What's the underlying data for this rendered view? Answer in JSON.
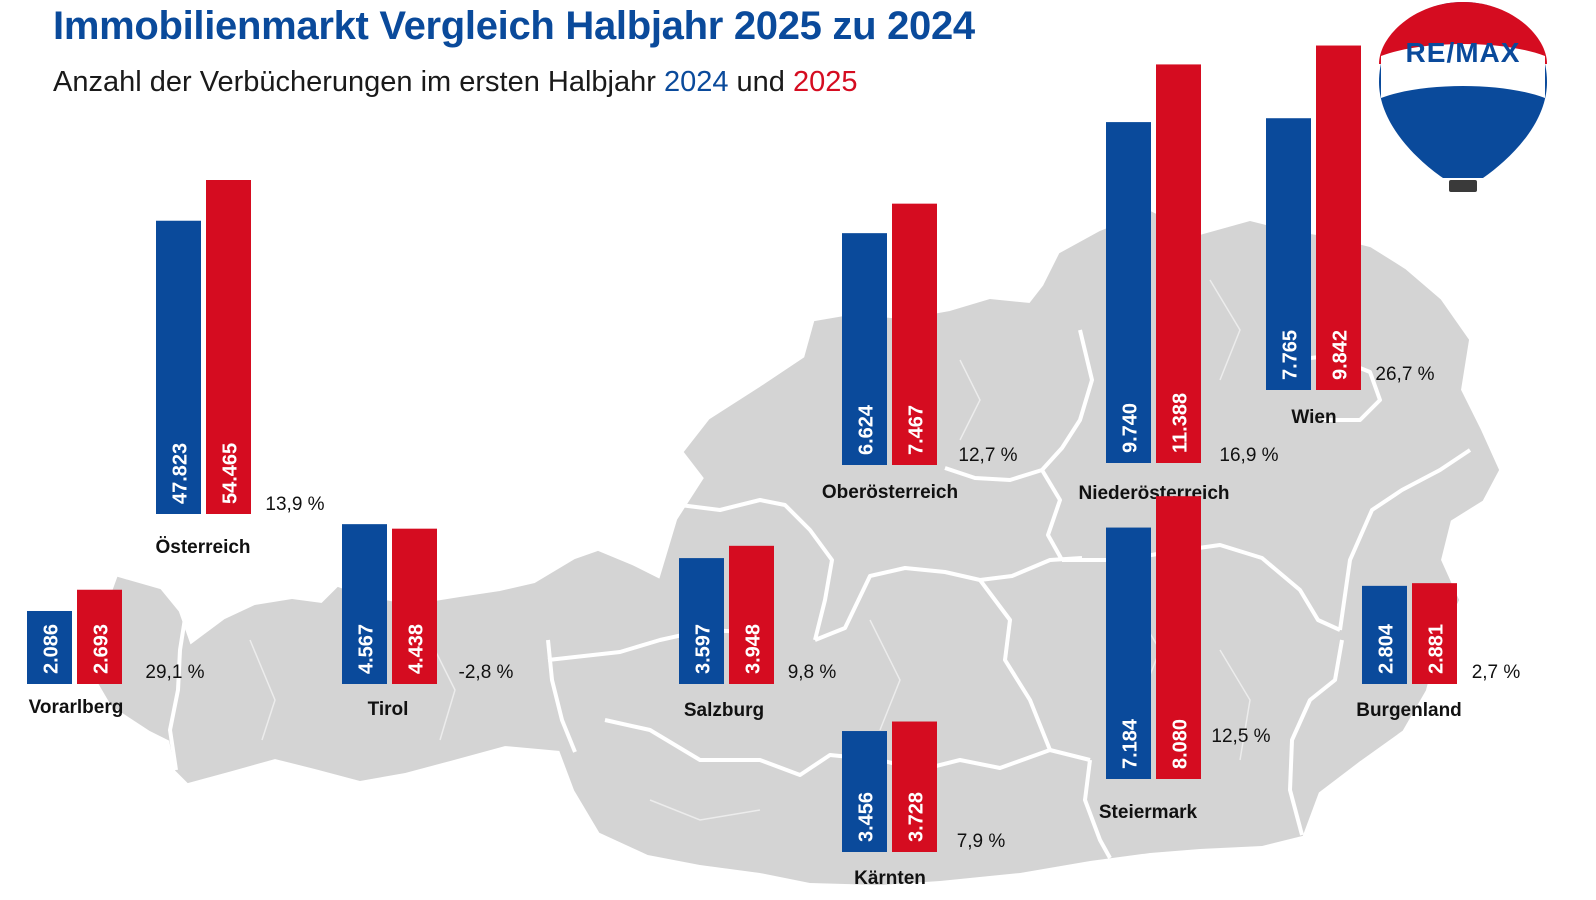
{
  "title": "Immobilienmarkt Vergleich Halbjahr 2025 zu 2024",
  "subtitle": {
    "prefix": "Anzahl der Verbücherungen im ersten Halbjahr ",
    "year_a": "2024",
    "middle": " und ",
    "year_b": "2025"
  },
  "logo": {
    "text": "RE/MAX",
    "icon": "hot-air-balloon-icon"
  },
  "colors": {
    "y2024": "#0a4a9b",
    "y2025": "#d50c20",
    "map": "#d4d4d4",
    "map_border": "#ffffff"
  },
  "chart_data": {
    "type": "bar",
    "title": "Immobilienmarkt Vergleich Halbjahr 2025 zu 2024",
    "subtitle": "Anzahl der Verbücherungen im ersten Halbjahr 2024 und 2025",
    "series_names": [
      "2024",
      "2025"
    ],
    "regions": [
      {
        "name": "Österreich",
        "v2024": 47823,
        "v2025": 54465,
        "label2024": "47.823",
        "label2025": "54.465",
        "change": "13,9 %"
      },
      {
        "name": "Vorarlberg",
        "v2024": 2086,
        "v2025": 2693,
        "label2024": "2.086",
        "label2025": "2.693",
        "change": "29,1 %"
      },
      {
        "name": "Tirol",
        "v2024": 4567,
        "v2025": 4438,
        "label2024": "4.567",
        "label2025": "4.438",
        "change": "-2,8 %"
      },
      {
        "name": "Salzburg",
        "v2024": 3597,
        "v2025": 3948,
        "label2024": "3.597",
        "label2025": "3.948",
        "change": "9,8 %"
      },
      {
        "name": "Oberösterreich",
        "v2024": 6624,
        "v2025": 7467,
        "label2024": "6.624",
        "label2025": "7.467",
        "change": "12,7 %"
      },
      {
        "name": "Niederösterreich",
        "v2024": 9740,
        "v2025": 11388,
        "label2024": "9.740",
        "label2025": "11.388",
        "change": "16,9 %"
      },
      {
        "name": "Wien",
        "v2024": 7765,
        "v2025": 9842,
        "label2024": "7.765",
        "label2025": "9.842",
        "change": "26,7 %"
      },
      {
        "name": "Kärnten",
        "v2024": 3456,
        "v2025": 3728,
        "label2024": "3.456",
        "label2025": "3.728",
        "change": "7,9 %"
      },
      {
        "name": "Steiermark",
        "v2024": 7184,
        "v2025": 8080,
        "label2024": "7.184",
        "label2025": "8.080",
        "change": "12,5 %"
      },
      {
        "name": "Burgenland",
        "v2024": 2804,
        "v2025": 2881,
        "label2024": "2.804",
        "label2025": "2.881",
        "change": "2,7 %"
      }
    ]
  }
}
